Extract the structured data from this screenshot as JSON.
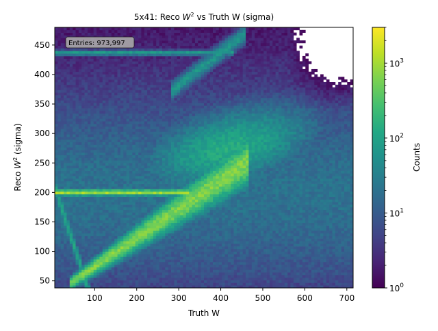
{
  "chart_data": {
    "type": "heatmap",
    "title": "5x41: Reco W² vs Truth W (sigma)",
    "title_parts": {
      "main": "5x41: Reco ",
      "var": "W",
      "sup": "2",
      "rest": " vs Truth W (sigma)"
    },
    "xlabel": "Truth W",
    "ylabel": "Reco W² (sigma)",
    "ylabel_parts": {
      "main": "Reco ",
      "var": "W",
      "sup": "2",
      "rest": " (sigma)"
    },
    "xlim": [
      5,
      715
    ],
    "ylim": [
      38,
      480
    ],
    "x_ticks": [
      100,
      200,
      300,
      400,
      500,
      600,
      700
    ],
    "y_ticks": [
      50,
      100,
      150,
      200,
      250,
      300,
      350,
      400,
      450
    ],
    "x_tick_labels": [
      "100",
      "200",
      "300",
      "400",
      "500",
      "600",
      "700"
    ],
    "y_tick_labels": [
      "50",
      "100",
      "150",
      "200",
      "250",
      "300",
      "350",
      "400",
      "450"
    ],
    "stats": "Entries: 973,997",
    "entries": 973997,
    "nbins_x": 100,
    "nbins_y": 100,
    "colormap": "viridis",
    "colorbar": {
      "label": "Counts",
      "scale": "log",
      "range": [
        1,
        3000
      ],
      "ticks": [
        {
          "value": 1,
          "base": "10",
          "exp": "0"
        },
        {
          "value": 10,
          "base": "10",
          "exp": "1"
        },
        {
          "value": 100,
          "base": "10",
          "exp": "2"
        },
        {
          "value": 1000,
          "base": "10",
          "exp": "3"
        }
      ]
    },
    "features": [
      {
        "kind": "horizontal-band",
        "x": [
          5,
          300
        ],
        "y": 200,
        "peak_counts": 3000
      },
      {
        "kind": "diagonal-band",
        "from": [
          40,
          45
        ],
        "to": [
          440,
          240
        ],
        "peak_counts": 1000
      },
      {
        "kind": "horizontal-band",
        "x": [
          5,
          420
        ],
        "y": 437,
        "peak_counts": 150
      },
      {
        "kind": "broad-ridge",
        "from": [
          250,
          300
        ],
        "to": [
          700,
          280
        ],
        "peak_counts": 200
      },
      {
        "kind": "edge-strip",
        "x": 10,
        "y": [
          38,
          200
        ],
        "peak_counts": 600
      }
    ]
  },
  "colors": {
    "viridis_stops": [
      "#440154",
      "#482475",
      "#414487",
      "#355f8d",
      "#2a788e",
      "#21918c",
      "#22a884",
      "#44bf70",
      "#7ad151",
      "#bddf26",
      "#fde725"
    ],
    "axis": "#000000",
    "stats_box_fill": "#a8a8a8",
    "stats_box_edge": "#222222"
  }
}
